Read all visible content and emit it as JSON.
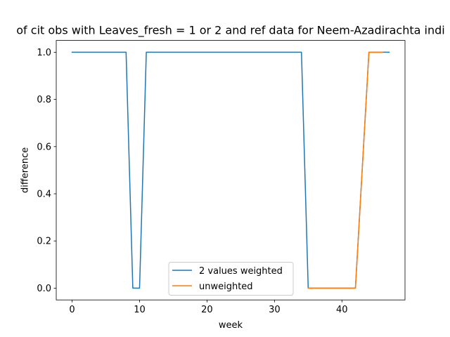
{
  "chart_data": {
    "type": "line",
    "title": "of cit obs with Leaves_fresh = 1 or 2 and ref data for Neem-Azadirachta indi",
    "xlabel": "week",
    "ylabel": "difference",
    "xlim": [
      -2.35,
      49.35
    ],
    "ylim": [
      -0.05,
      1.05
    ],
    "xticks": [
      0,
      10,
      20,
      30,
      40
    ],
    "yticks": [
      0.0,
      0.2,
      0.4,
      0.6,
      0.8,
      1.0
    ],
    "xtick_labels": [
      "0",
      "10",
      "20",
      "30",
      "40"
    ],
    "ytick_labels": [
      "0.0",
      "0.2",
      "0.4",
      "0.6",
      "0.8",
      "1.0"
    ],
    "legend_position": "lower center",
    "series": [
      {
        "name": "2 values weighted",
        "color": "#1f77b4",
        "x": [
          0,
          8,
          9,
          10,
          11,
          34,
          35,
          42,
          44,
          47
        ],
        "y": [
          1,
          1,
          0,
          0,
          1,
          1,
          0,
          0,
          1,
          1
        ]
      },
      {
        "name": "unweighted",
        "color": "#ff7f0e",
        "x": [
          35,
          42,
          44,
          46
        ],
        "y": [
          0,
          0,
          1,
          1
        ]
      }
    ]
  }
}
